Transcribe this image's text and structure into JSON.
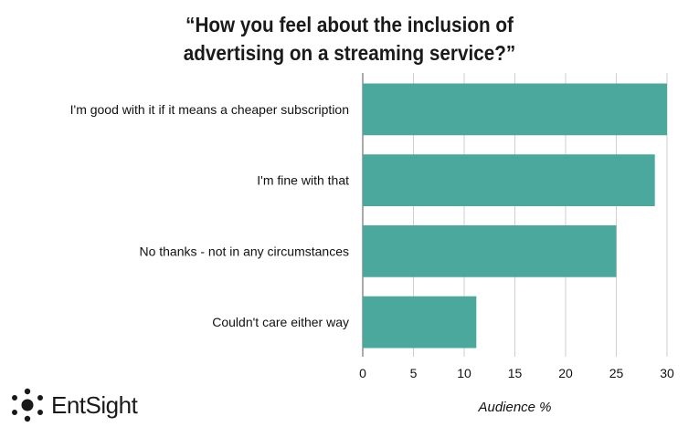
{
  "chart_data": {
    "type": "bar",
    "orientation": "horizontal",
    "title_lines": [
      "“How you feel about the inclusion of",
      "advertising on a streaming service?”"
    ],
    "categories": [
      "I'm good with it if it means a cheaper subscription",
      "I'm fine with that",
      "No thanks - not in any circumstances",
      "Couldn't care either way"
    ],
    "values": [
      30,
      28.8,
      25,
      11.2
    ],
    "xlabel": "Audience %",
    "ylabel": "",
    "xlim": [
      0,
      30
    ],
    "ticks": [
      "0",
      "5",
      "10",
      "15",
      "20",
      "25",
      "30"
    ],
    "grid": "vertical",
    "bar_color": "#4ba89c"
  },
  "logo": {
    "name": "EntSight"
  }
}
